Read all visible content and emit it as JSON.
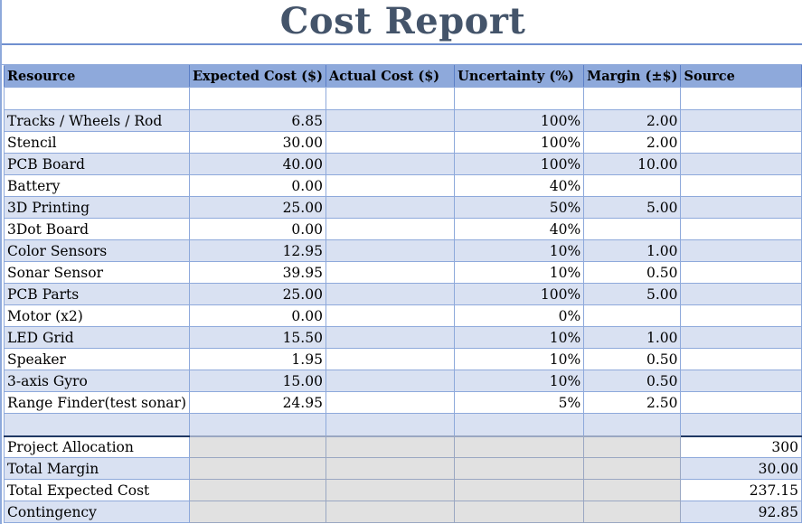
{
  "title": "Cost Report",
  "headers": [
    "Resource",
    "Expected Cost ($)",
    "Actual Cost ($)",
    "Uncertainty (%)",
    "Margin (±$)",
    "Source"
  ],
  "items": [
    {
      "resource": "Tracks / Wheels / Rod",
      "expected": "6.85",
      "actual": "",
      "uncertainty": "100%",
      "margin": "2.00",
      "source": ""
    },
    {
      "resource": "Stencil",
      "expected": "30.00",
      "actual": "",
      "uncertainty": "100%",
      "margin": "2.00",
      "source": ""
    },
    {
      "resource": "PCB Board",
      "expected": "40.00",
      "actual": "",
      "uncertainty": "100%",
      "margin": "10.00",
      "source": ""
    },
    {
      "resource": "Battery",
      "expected": "0.00",
      "actual": "",
      "uncertainty": "40%",
      "margin": "",
      "source": ""
    },
    {
      "resource": "3D Printing",
      "expected": "25.00",
      "actual": "",
      "uncertainty": "50%",
      "margin": "5.00",
      "source": ""
    },
    {
      "resource": "3Dot Board",
      "expected": "0.00",
      "actual": "",
      "uncertainty": "40%",
      "margin": "",
      "source": ""
    },
    {
      "resource": "Color Sensors",
      "expected": "12.95",
      "actual": "",
      "uncertainty": "10%",
      "margin": "1.00",
      "source": ""
    },
    {
      "resource": "Sonar Sensor",
      "expected": "39.95",
      "actual": "",
      "uncertainty": "10%",
      "margin": "0.50",
      "source": ""
    },
    {
      "resource": "PCB Parts",
      "expected": "25.00",
      "actual": "",
      "uncertainty": "100%",
      "margin": "5.00",
      "source": ""
    },
    {
      "resource": "Motor (x2)",
      "expected": "0.00",
      "actual": "",
      "uncertainty": "0%",
      "margin": "",
      "source": ""
    },
    {
      "resource": "LED Grid",
      "expected": "15.50",
      "actual": "",
      "uncertainty": "10%",
      "margin": "1.00",
      "source": ""
    },
    {
      "resource": "Speaker",
      "expected": "1.95",
      "actual": "",
      "uncertainty": "10%",
      "margin": "0.50",
      "source": ""
    },
    {
      "resource": "3-axis Gyro",
      "expected": "15.00",
      "actual": "",
      "uncertainty": "10%",
      "margin": "0.50",
      "source": ""
    },
    {
      "resource": "Range Finder(test sonar)",
      "expected": "24.95",
      "actual": "",
      "uncertainty": "5%",
      "margin": "2.50",
      "source": ""
    }
  ],
  "summary": [
    {
      "label": "Project Allocation",
      "value": "300"
    },
    {
      "label": "Total Margin",
      "value": "30.00"
    },
    {
      "label": "Total Expected Cost",
      "value": "237.15"
    },
    {
      "label": "Contingency",
      "value": "92.85"
    }
  ],
  "colors": {
    "header_fill": "#8ea9db",
    "band_fill": "#d9e1f2",
    "title_text": "#44546a",
    "summary_grey": "#e1e1e1"
  }
}
